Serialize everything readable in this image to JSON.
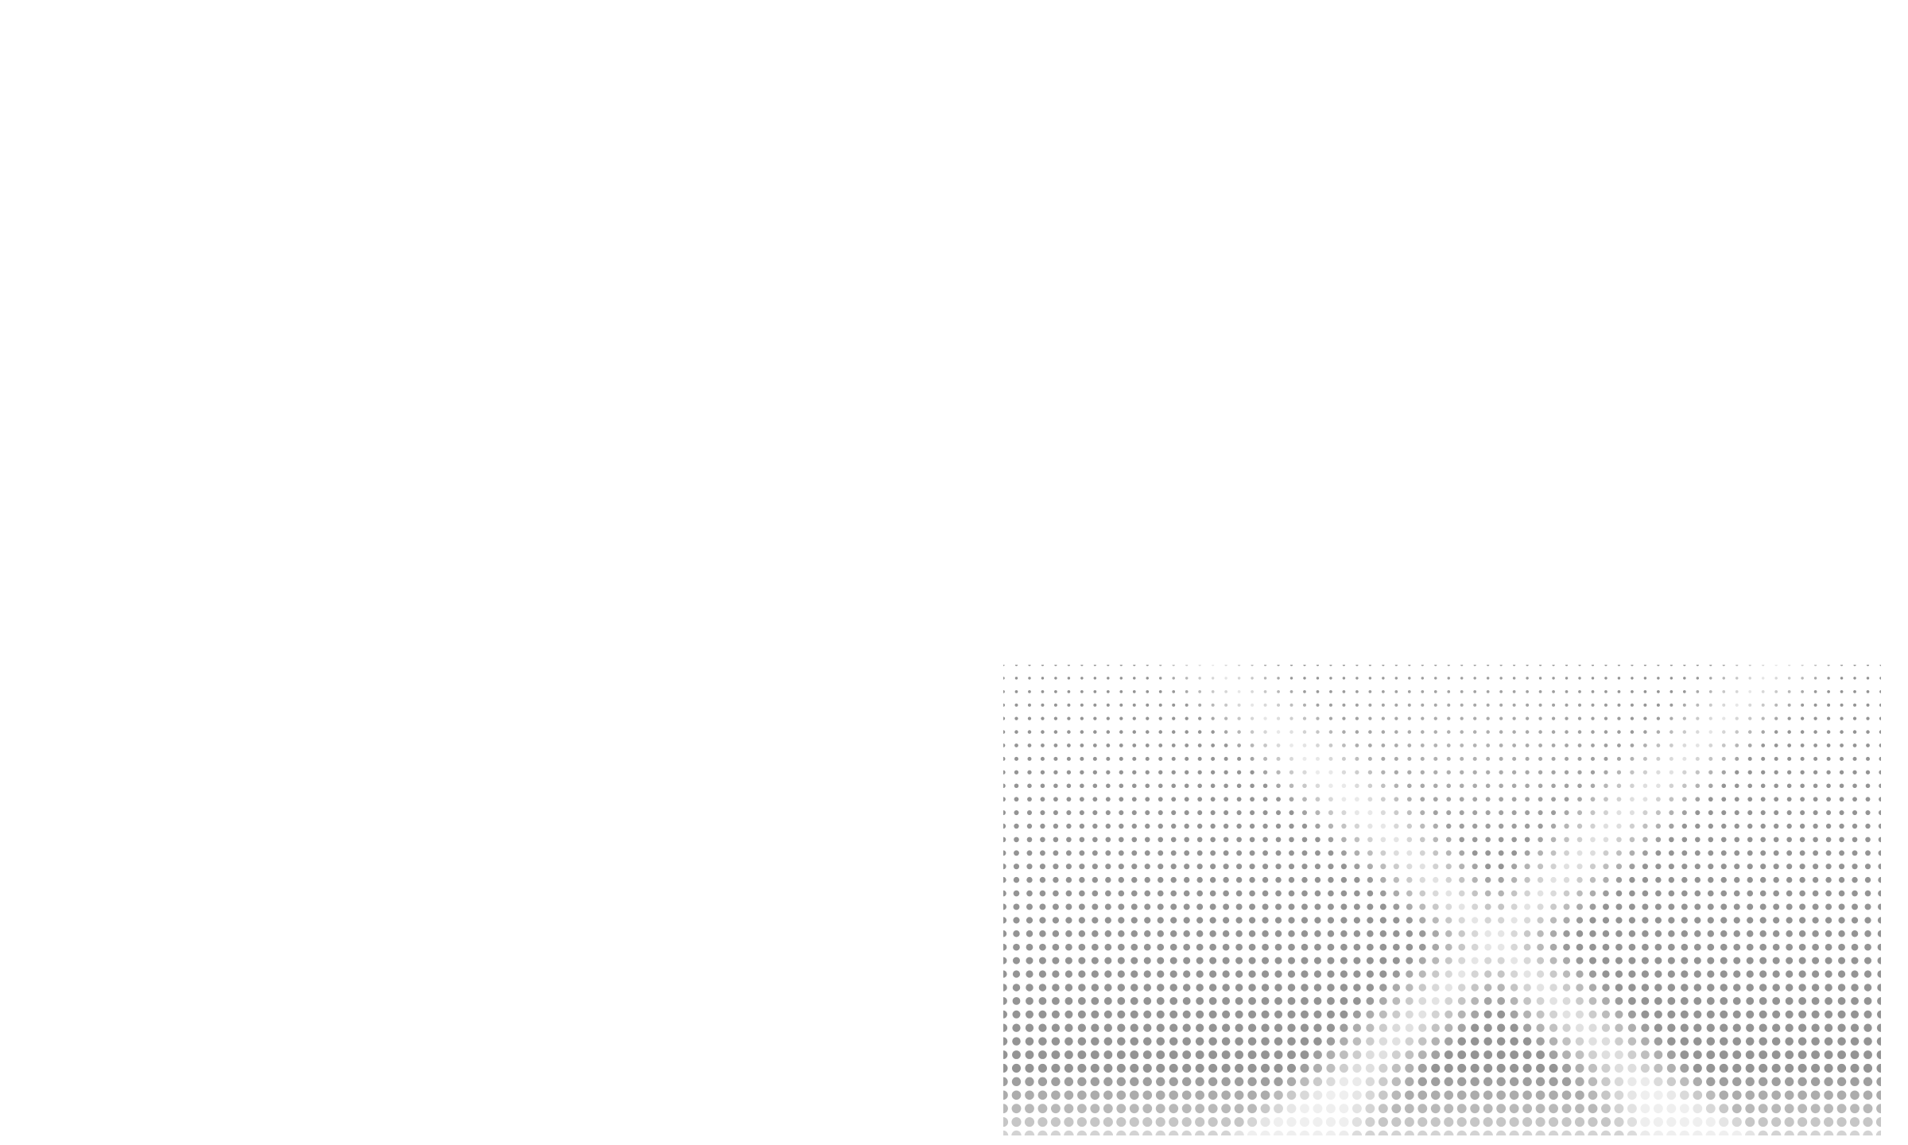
{
  "canvas": {
    "background": "#ffffff"
  },
  "halftone": {
    "dot_color": "#5f5f5f",
    "highlight_color": "#ffffff",
    "motif": "wave-halftone-dot-pattern"
  }
}
